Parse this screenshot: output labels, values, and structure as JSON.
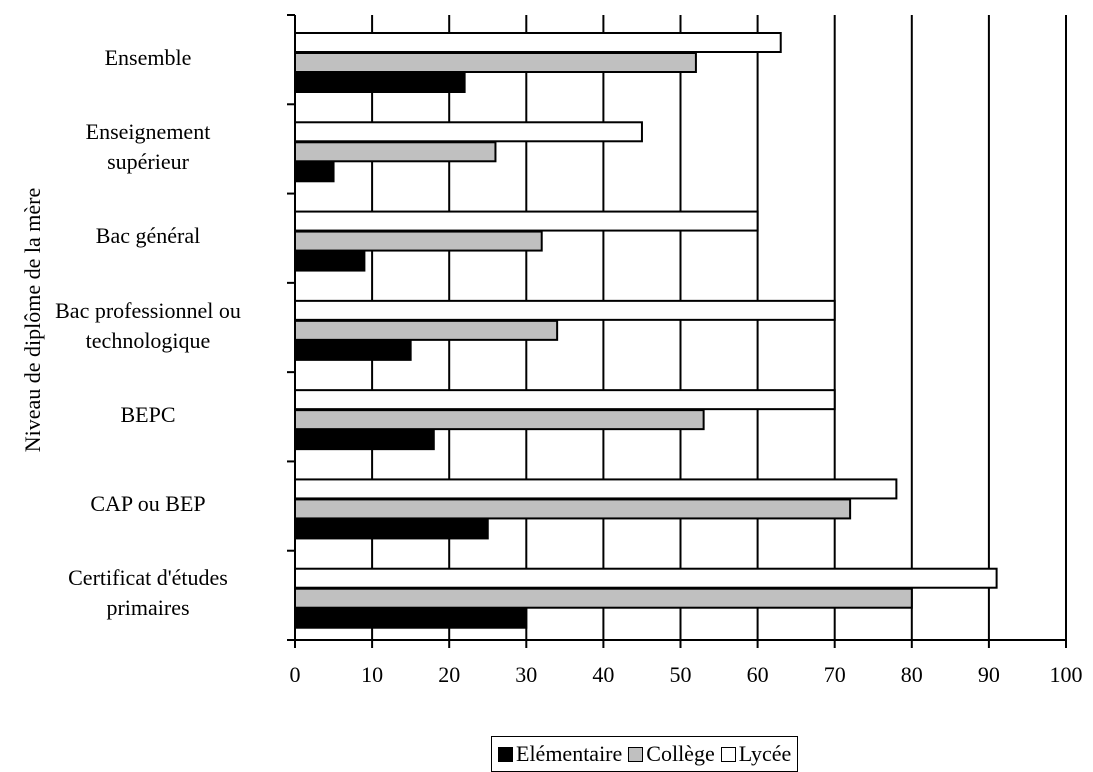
{
  "chart_data": {
    "type": "bar",
    "orientation": "horizontal",
    "ylabel": "Niveau de diplôme de la mère",
    "xlim": [
      0,
      100
    ],
    "x_ticks": [
      "0",
      "10",
      "20",
      "30",
      "40",
      "50",
      "60",
      "70",
      "80",
      "90",
      "100"
    ],
    "grid": "vertical",
    "legend_position": "bottom",
    "categories": [
      "Ensemble",
      "Enseignement\nsupérieur",
      "Bac général",
      "Bac professionnel ou\ntechnologique",
      "BEPC",
      "CAP ou BEP",
      "Certificat d'études\nprimaires"
    ],
    "series": [
      {
        "name": "Lycée",
        "color": "#ffffff",
        "values": [
          63,
          45,
          60,
          70,
          70,
          78,
          91
        ]
      },
      {
        "name": "Collège",
        "color": "#c0c0c0",
        "values": [
          52,
          26,
          32,
          34,
          53,
          72,
          80
        ]
      },
      {
        "name": "Elémentaire",
        "color": "#000000",
        "values": [
          22,
          5,
          9,
          15,
          18,
          25,
          30
        ]
      }
    ],
    "legend_order": [
      "Elémentaire",
      "Collège",
      "Lycée"
    ]
  }
}
